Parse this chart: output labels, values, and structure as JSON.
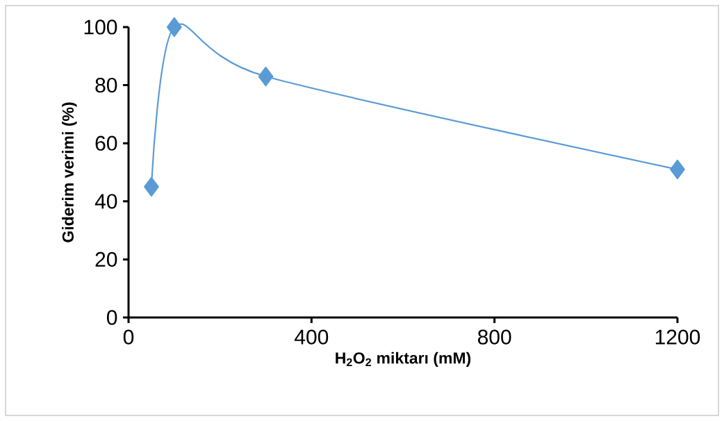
{
  "chart_data": {
    "type": "line",
    "xlabel": "H$_{2}$O$_{2}$ miktarı (mM)",
    "ylabel": "Giderim verimi (%)",
    "x": [
      50,
      100,
      300,
      1200
    ],
    "series": [
      {
        "color": "#5b9bd5",
        "values": [
          45,
          100,
          83,
          51
        ]
      }
    ],
    "xlim": [
      0,
      1200
    ],
    "ylim": [
      0,
      100
    ],
    "xticks": [
      0,
      400,
      800,
      1200
    ],
    "yticks": [
      0,
      20,
      40,
      60,
      80,
      100
    ],
    "marker": "diamond",
    "line_style": "solid"
  }
}
